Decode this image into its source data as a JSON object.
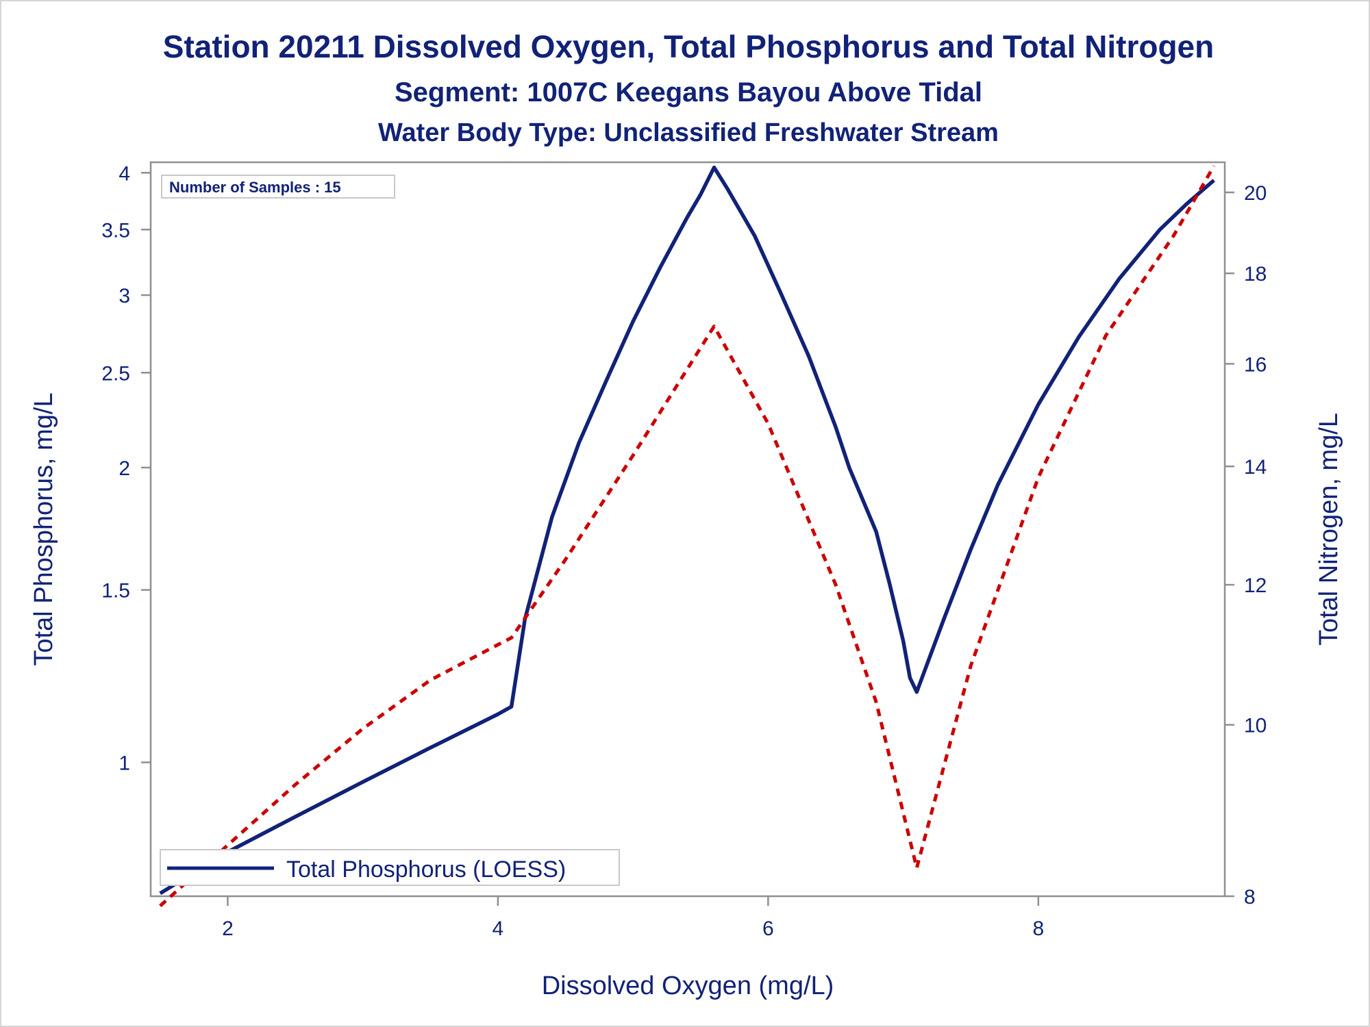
{
  "chart_data": {
    "type": "line",
    "title": "Station 20211  Dissolved Oxygen, Total Phosphorus and Total Nitrogen",
    "subtitle": "Segment: 1007C  Keegans Bayou Above Tidal",
    "subtitle2": "Water Body Type: Unclassified Freshwater Stream",
    "xlabel": "Dissolved Oxygen (mg/L)",
    "ylabel": "Total Phosphorus, mg/L",
    "y2label": "Total Nitrogen, mg/L",
    "xlim": [
      1.43,
      9.38
    ],
    "ylim": [
      0.73,
      4.1
    ],
    "ylim_right": [
      8,
      20.8
    ],
    "y_scale": "log",
    "y2_scale": "log",
    "x_ticks": [
      "2",
      "4",
      "6",
      "8"
    ],
    "x_tick_values": [
      2,
      4,
      6,
      8
    ],
    "y_ticks": [
      "1",
      "1.5",
      "2",
      "2.5",
      "3",
      "3.5",
      "4"
    ],
    "y_tick_values": [
      1,
      1.5,
      2,
      2.5,
      3,
      3.5,
      4
    ],
    "y2_ticks": [
      "8",
      "10",
      "12",
      "14",
      "16",
      "18",
      "20"
    ],
    "y2_tick_values": [
      8,
      10,
      12,
      14,
      16,
      18,
      20
    ],
    "annotation": "Number of Samples : 15",
    "legend": {
      "position": "bottom-left",
      "entries": [
        "Total Phosphorus (LOESS)"
      ]
    },
    "grid": false,
    "series": [
      {
        "name": "Total Phosphorus (LOESS)",
        "axis": "left",
        "style": "solid",
        "color": "#112277",
        "points": [
          [
            1.5,
            0.735
          ],
          [
            2.0,
            0.81
          ],
          [
            2.5,
            0.88
          ],
          [
            3.0,
            0.955
          ],
          [
            3.5,
            1.035
          ],
          [
            4.0,
            1.12
          ],
          [
            4.1,
            1.14
          ],
          [
            4.2,
            1.4
          ],
          [
            4.4,
            1.78
          ],
          [
            4.6,
            2.12
          ],
          [
            4.8,
            2.45
          ],
          [
            5.0,
            2.82
          ],
          [
            5.2,
            3.2
          ],
          [
            5.4,
            3.6
          ],
          [
            5.5,
            3.8
          ],
          [
            5.6,
            4.05
          ],
          [
            5.7,
            3.85
          ],
          [
            5.9,
            3.45
          ],
          [
            6.1,
            3.0
          ],
          [
            6.3,
            2.6
          ],
          [
            6.5,
            2.2
          ],
          [
            6.6,
            2.0
          ],
          [
            6.8,
            1.72
          ],
          [
            6.9,
            1.52
          ],
          [
            7.0,
            1.33
          ],
          [
            7.05,
            1.22
          ],
          [
            7.1,
            1.18
          ],
          [
            7.3,
            1.4
          ],
          [
            7.5,
            1.65
          ],
          [
            7.7,
            1.92
          ],
          [
            8.0,
            2.32
          ],
          [
            8.3,
            2.72
          ],
          [
            8.6,
            3.12
          ],
          [
            8.9,
            3.5
          ],
          [
            9.1,
            3.72
          ],
          [
            9.3,
            3.93
          ]
        ]
      },
      {
        "name": "",
        "axis": "right",
        "style": "dashed",
        "color": "#cc0000",
        "points": [
          [
            1.5,
            7.9
          ],
          [
            2.0,
            8.55
          ],
          [
            2.5,
            9.25
          ],
          [
            3.0,
            9.95
          ],
          [
            3.5,
            10.6
          ],
          [
            4.0,
            11.1
          ],
          [
            4.1,
            11.2
          ],
          [
            4.5,
            12.4
          ],
          [
            5.0,
            14.2
          ],
          [
            5.6,
            16.8
          ],
          [
            6.0,
            14.8
          ],
          [
            6.5,
            12.0
          ],
          [
            6.8,
            10.3
          ],
          [
            7.1,
            8.3
          ],
          [
            7.5,
            10.8
          ],
          [
            8.0,
            13.8
          ],
          [
            8.5,
            16.6
          ],
          [
            9.0,
            18.9
          ],
          [
            9.3,
            20.7
          ]
        ]
      }
    ]
  }
}
